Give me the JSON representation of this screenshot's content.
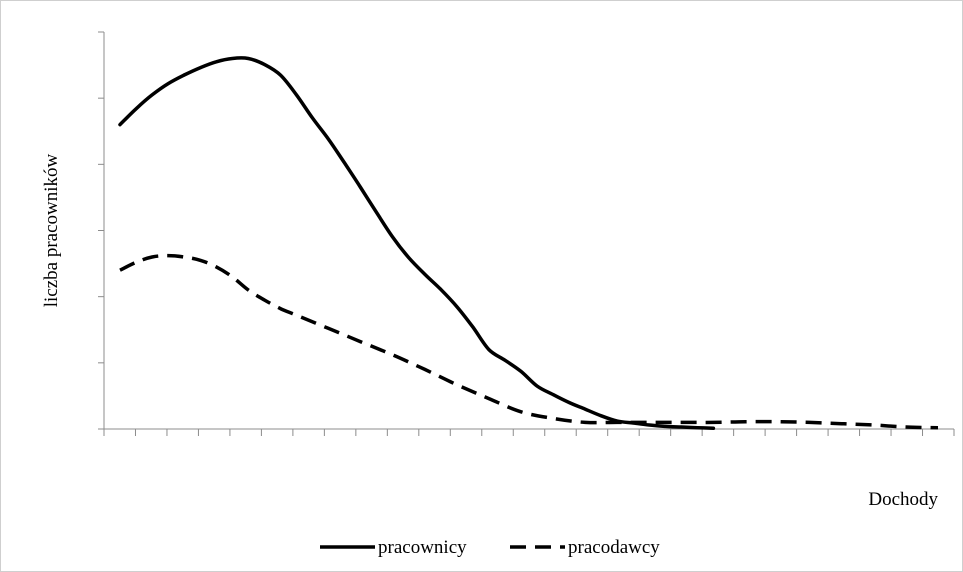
{
  "chart_data": {
    "type": "line",
    "xlabel": "Dochody",
    "ylabel": "liczba pracowników",
    "xlim": [
      0,
      26.5
    ],
    "ylim": [
      0,
      6
    ],
    "x_tick_count": 27,
    "y_tick_count": 6,
    "grid": false,
    "legend_position": "bottom",
    "series": [
      {
        "name": "pracownicy",
        "style": "solid",
        "color": "#000000",
        "x": [
          0.5,
          1,
          1.5,
          2,
          2.5,
          3,
          3.5,
          4,
          4.5,
          5,
          5.5,
          6,
          6.5,
          7,
          7.5,
          8,
          8.5,
          9,
          9.5,
          10,
          10.5,
          11,
          11.5,
          12,
          12.5,
          13,
          13.5,
          14,
          14.5,
          15,
          15.5,
          16,
          16.5,
          17,
          17.5,
          18,
          18.5,
          19
        ],
        "values": [
          4.6,
          4.84,
          5.05,
          5.22,
          5.35,
          5.46,
          5.55,
          5.6,
          5.6,
          5.51,
          5.35,
          5.05,
          4.7,
          4.38,
          4.02,
          3.65,
          3.27,
          2.9,
          2.59,
          2.34,
          2.11,
          1.85,
          1.54,
          1.2,
          1.04,
          0.87,
          0.65,
          0.52,
          0.4,
          0.3,
          0.2,
          0.12,
          0.09,
          0.06,
          0.04,
          0.03,
          0.02,
          0.01
        ]
      },
      {
        "name": "pracodawcy",
        "style": "dashed",
        "color": "#000000",
        "x": [
          0.5,
          1,
          1.5,
          2,
          2.5,
          3,
          3.5,
          4,
          4.5,
          5,
          5.5,
          6,
          7,
          8,
          9,
          10,
          11,
          12,
          13,
          14,
          15,
          16,
          17,
          18,
          19,
          20,
          21,
          22,
          23,
          24,
          25,
          26
        ],
        "values": [
          2.4,
          2.52,
          2.6,
          2.62,
          2.6,
          2.55,
          2.45,
          2.3,
          2.1,
          1.95,
          1.82,
          1.72,
          1.52,
          1.32,
          1.12,
          0.9,
          0.67,
          0.46,
          0.26,
          0.16,
          0.1,
          0.1,
          0.1,
          0.1,
          0.1,
          0.11,
          0.11,
          0.1,
          0.08,
          0.06,
          0.03,
          0.02
        ]
      }
    ]
  }
}
